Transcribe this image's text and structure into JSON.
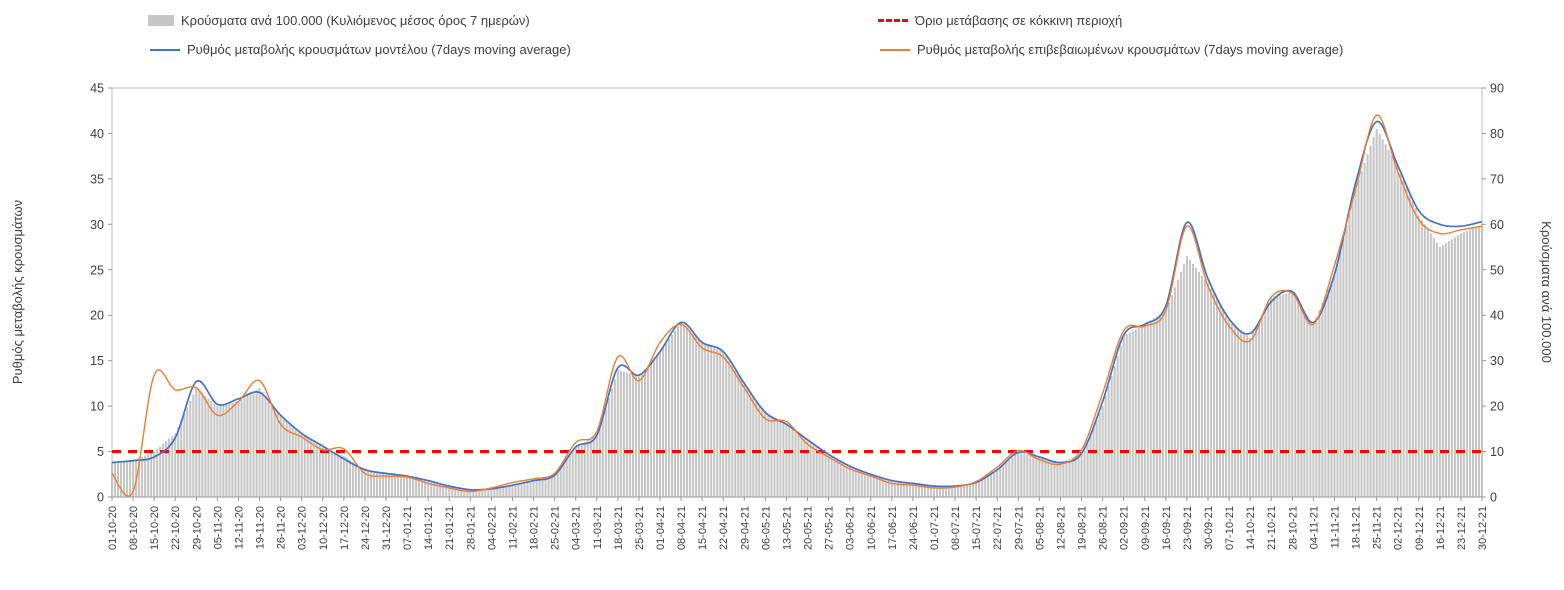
{
  "legend": {
    "bars": "Κρούσματα ανά 100.000 (Κυλιόμενος μέσος όρος 7 ημερών)",
    "threshold": "Όριο μετάβασης σε κόκκινη περιοχή",
    "model": "Ρυθμός μεταβολής κρουσμάτων μοντέλου (7days moving average)",
    "confirmed": "Ρυθμός μεταβολής επιβεβαιωμένων κρουσμάτων (7days moving average)"
  },
  "axes": {
    "left_label": "Ρυθμός μεταβολής κρουσμάτων",
    "right_label": "Κρούσματα ανά 100.000",
    "left_ticks": [
      0,
      5,
      10,
      15,
      20,
      25,
      30,
      35,
      40,
      45
    ],
    "right_ticks": [
      0,
      10,
      20,
      30,
      40,
      50,
      60,
      70,
      80,
      90
    ]
  },
  "colors": {
    "bars": "#c6c6c6",
    "threshold": "#fe0000",
    "model": "#4472c4",
    "confirmed": "#ed7d31",
    "tick_text": "#3f3f3f",
    "axis_line": "#bfbfbf"
  },
  "chart_data": {
    "type": "mixed-bar-line",
    "title": "",
    "xlabel": "",
    "left_ylabel": "Ρυθμός μεταβολής κρουσμάτων",
    "right_ylabel": "Κρούσματα ανά 100.000",
    "left_range": [
      0,
      45
    ],
    "right_range": [
      0,
      90
    ],
    "grid": false,
    "legend_position": "top",
    "threshold": {
      "axis": "left",
      "value": 5,
      "label": "Όριο μετάβασης σε κόκκινη περιοχή"
    },
    "x": [
      "01-10-20",
      "08-10-20",
      "15-10-20",
      "22-10-20",
      "29-10-20",
      "05-11-20",
      "12-11-20",
      "19-11-20",
      "26-11-20",
      "03-12-20",
      "10-12-20",
      "17-12-20",
      "24-12-20",
      "31-12-20",
      "07-01-21",
      "14-01-21",
      "21-01-21",
      "28-01-21",
      "04-02-21",
      "11-02-21",
      "18-02-21",
      "25-02-21",
      "04-03-21",
      "11-03-21",
      "18-03-21",
      "25-03-21",
      "01-04-21",
      "08-04-21",
      "15-04-21",
      "22-04-21",
      "29-04-21",
      "06-05-21",
      "13-05-21",
      "20-05-21",
      "27-05-21",
      "03-06-21",
      "10-06-21",
      "17-06-21",
      "24-06-21",
      "01-07-21",
      "08-07-21",
      "15-07-21",
      "22-07-21",
      "29-07-21",
      "05-08-21",
      "12-08-21",
      "19-08-21",
      "26-08-21",
      "02-09-21",
      "09-09-21",
      "16-09-21",
      "23-09-21",
      "30-09-21",
      "07-10-21",
      "14-10-21",
      "21-10-21",
      "28-10-21",
      "04-11-21",
      "11-11-21",
      "18-11-21",
      "25-11-21",
      "02-12-21",
      "09-12-21",
      "16-12-21",
      "23-12-21",
      "30-12-21"
    ],
    "series": [
      {
        "name": "model",
        "label": "Ρυθμός μεταβολής κρουσμάτων μοντέλου (7days moving average)",
        "axis": "left",
        "type": "line",
        "values": [
          3.8,
          4.0,
          4.4,
          6.5,
          12.7,
          10.2,
          10.8,
          11.5,
          9.0,
          7.0,
          5.6,
          4.2,
          3.0,
          2.6,
          2.3,
          1.8,
          1.2,
          0.8,
          0.9,
          1.3,
          1.8,
          2.4,
          5.5,
          6.8,
          14.2,
          13.4,
          16.0,
          19.2,
          17.0,
          16.0,
          12.5,
          9.3,
          8.0,
          6.3,
          4.7,
          3.4,
          2.5,
          1.8,
          1.5,
          1.2,
          1.2,
          1.6,
          3.0,
          4.9,
          4.4,
          3.8,
          4.8,
          10.5,
          17.8,
          19.0,
          21.0,
          30.2,
          24.0,
          19.6,
          18.0,
          21.5,
          22.6,
          19.2,
          24.5,
          34.5,
          41.3,
          36.5,
          31.5,
          30.0,
          29.8,
          30.3
        ]
      },
      {
        "name": "confirmed",
        "label": "Ρυθμός μεταβολής επιβεβαιωμένων κρουσμάτων (7days moving average)",
        "axis": "left",
        "type": "line",
        "values": [
          2.6,
          0.6,
          13.4,
          11.8,
          12.0,
          9.0,
          10.5,
          12.8,
          8.0,
          6.6,
          5.2,
          5.3,
          2.6,
          2.3,
          2.2,
          1.5,
          1.0,
          0.6,
          1.0,
          1.6,
          2.0,
          2.6,
          6.0,
          7.2,
          15.4,
          12.8,
          17.0,
          19.0,
          16.4,
          15.4,
          12.0,
          8.6,
          8.3,
          5.8,
          4.4,
          3.1,
          2.3,
          1.5,
          1.3,
          1.0,
          1.1,
          1.7,
          3.3,
          5.1,
          4.1,
          3.6,
          5.2,
          11.4,
          18.3,
          18.8,
          20.5,
          29.8,
          23.2,
          18.8,
          17.2,
          22.0,
          22.4,
          19.0,
          25.5,
          33.8,
          42.0,
          35.8,
          30.5,
          29.0,
          29.4,
          29.8
        ]
      },
      {
        "name": "cases_per_100k",
        "label": "Κρούσματα ανά 100.000 (Κυλιόμενος μέσος όρος 7 ημερών)",
        "axis": "right",
        "type": "bar",
        "values": [
          7.5,
          8,
          10,
          14,
          24,
          20,
          21,
          24,
          18,
          14,
          11,
          9,
          6,
          5,
          4.5,
          3.5,
          2.5,
          1.6,
          1.8,
          2.6,
          3.6,
          5,
          11,
          13.5,
          28,
          26.5,
          32,
          38.5,
          34,
          32,
          25,
          18.5,
          16,
          12.5,
          9.5,
          7,
          5,
          3.6,
          3,
          2.4,
          2.4,
          3.2,
          6,
          9.8,
          8.8,
          7.6,
          9.5,
          20,
          35.5,
          38,
          41,
          53,
          47,
          39,
          35,
          44,
          45,
          38,
          49,
          68,
          81,
          73,
          62,
          55,
          58,
          60
        ]
      }
    ]
  }
}
